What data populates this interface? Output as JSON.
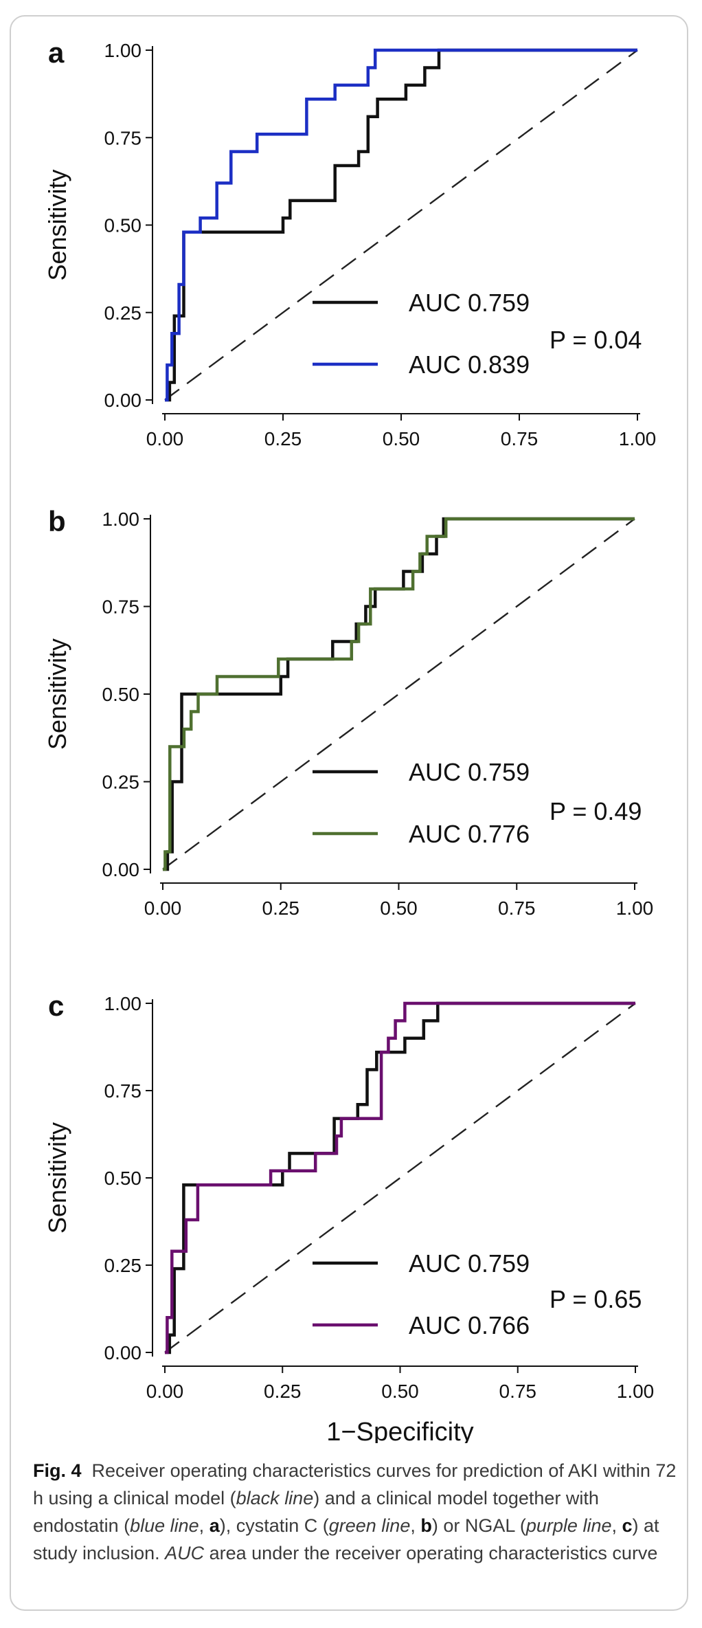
{
  "chart_data": [
    {
      "type": "line",
      "panel_label": "a",
      "ylabel": "Sensitivity",
      "xlabel": "",
      "xlim": [
        0,
        1
      ],
      "ylim": [
        0,
        1
      ],
      "xticks": [
        "0.00",
        "0.25",
        "0.50",
        "0.75",
        "1.00"
      ],
      "yticks": [
        "0.00",
        "0.25",
        "0.50",
        "0.75",
        "1.00"
      ],
      "reference_line": "diagonal-dashed",
      "legend_position": "bottom-right",
      "p_value_label": "P = 0.04",
      "series": [
        {
          "name": "AUC 0.759",
          "color": "#111111",
          "x": [
            0,
            0.01,
            0.01,
            0.02,
            0.02,
            0.04,
            0.04,
            0.25,
            0.25,
            0.265,
            0.265,
            0.36,
            0.36,
            0.41,
            0.41,
            0.43,
            0.43,
            0.45,
            0.45,
            0.51,
            0.51,
            0.55,
            0.55,
            0.58,
            0.58,
            0.595,
            0.595,
            1.0
          ],
          "y": [
            0,
            0,
            0.05,
            0.05,
            0.24,
            0.24,
            0.48,
            0.48,
            0.52,
            0.52,
            0.57,
            0.57,
            0.67,
            0.67,
            0.71,
            0.71,
            0.81,
            0.81,
            0.86,
            0.86,
            0.9,
            0.9,
            0.95,
            0.95,
            1.0,
            1.0,
            1.0,
            1.0
          ]
        },
        {
          "name": "AUC 0.839",
          "color": "#1c2fc4",
          "x": [
            0,
            0.005,
            0.005,
            0.015,
            0.015,
            0.03,
            0.03,
            0.04,
            0.04,
            0.075,
            0.075,
            0.11,
            0.11,
            0.14,
            0.14,
            0.195,
            0.195,
            0.3,
            0.3,
            0.36,
            0.36,
            0.43,
            0.43,
            0.445,
            0.445,
            1.0
          ],
          "y": [
            0,
            0,
            0.1,
            0.1,
            0.19,
            0.19,
            0.33,
            0.33,
            0.48,
            0.48,
            0.52,
            0.52,
            0.62,
            0.62,
            0.71,
            0.71,
            0.76,
            0.76,
            0.86,
            0.86,
            0.9,
            0.9,
            0.95,
            0.95,
            1.0,
            1.0
          ]
        }
      ]
    },
    {
      "type": "line",
      "panel_label": "b",
      "ylabel": "Sensitivity",
      "xlabel": "",
      "xlim": [
        0,
        1
      ],
      "ylim": [
        0,
        1
      ],
      "xticks": [
        "0.00",
        "0.25",
        "0.50",
        "0.75",
        "1.00"
      ],
      "yticks": [
        "0.00",
        "0.25",
        "0.50",
        "0.75",
        "1.00"
      ],
      "reference_line": "diagonal-dashed",
      "legend_position": "bottom-right",
      "p_value_label": "P = 0.49",
      "series": [
        {
          "name": "AUC 0.759",
          "color": "#111111",
          "x": [
            0,
            0.01,
            0.01,
            0.02,
            0.02,
            0.04,
            0.04,
            0.25,
            0.25,
            0.265,
            0.265,
            0.36,
            0.36,
            0.41,
            0.41,
            0.43,
            0.43,
            0.45,
            0.45,
            0.51,
            0.51,
            0.55,
            0.55,
            0.58,
            0.58,
            0.595,
            0.595,
            1.0
          ],
          "y": [
            0,
            0,
            0.05,
            0.05,
            0.25,
            0.25,
            0.5,
            0.5,
            0.55,
            0.55,
            0.6,
            0.6,
            0.65,
            0.65,
            0.7,
            0.7,
            0.75,
            0.75,
            0.8,
            0.8,
            0.85,
            0.85,
            0.9,
            0.9,
            0.95,
            0.95,
            1.0,
            1.0
          ]
        },
        {
          "name": "AUC 0.776",
          "color": "#4f7030",
          "x": [
            0,
            0.005,
            0.005,
            0.015,
            0.015,
            0.045,
            0.045,
            0.06,
            0.06,
            0.075,
            0.075,
            0.115,
            0.115,
            0.245,
            0.245,
            0.4,
            0.4,
            0.415,
            0.415,
            0.44,
            0.44,
            0.53,
            0.53,
            0.545,
            0.545,
            0.56,
            0.56,
            0.6,
            0.6,
            1.0
          ],
          "y": [
            0,
            0,
            0.05,
            0.05,
            0.35,
            0.35,
            0.4,
            0.4,
            0.45,
            0.45,
            0.5,
            0.5,
            0.55,
            0.55,
            0.6,
            0.6,
            0.65,
            0.65,
            0.7,
            0.7,
            0.8,
            0.8,
            0.85,
            0.85,
            0.9,
            0.9,
            0.95,
            0.95,
            1.0,
            1.0
          ]
        }
      ]
    },
    {
      "type": "line",
      "panel_label": "c",
      "ylabel": "Sensitivity",
      "xlabel": "1−Specificity",
      "xlim": [
        0,
        1
      ],
      "ylim": [
        0,
        1
      ],
      "xticks": [
        "0.00",
        "0.25",
        "0.50",
        "0.75",
        "1.00"
      ],
      "yticks": [
        "0.00",
        "0.25",
        "0.50",
        "0.75",
        "1.00"
      ],
      "reference_line": "diagonal-dashed",
      "legend_position": "bottom-right",
      "p_value_label": "P = 0.65",
      "series": [
        {
          "name": "AUC 0.759",
          "color": "#111111",
          "x": [
            0,
            0.01,
            0.01,
            0.02,
            0.02,
            0.04,
            0.04,
            0.25,
            0.25,
            0.265,
            0.265,
            0.36,
            0.36,
            0.41,
            0.41,
            0.43,
            0.43,
            0.45,
            0.45,
            0.51,
            0.51,
            0.55,
            0.55,
            0.58,
            0.58,
            0.595,
            0.595,
            1.0
          ],
          "y": [
            0,
            0,
            0.05,
            0.05,
            0.24,
            0.24,
            0.48,
            0.48,
            0.52,
            0.52,
            0.57,
            0.57,
            0.67,
            0.67,
            0.71,
            0.71,
            0.81,
            0.81,
            0.86,
            0.86,
            0.9,
            0.9,
            0.95,
            0.95,
            1.0,
            1.0,
            1.0,
            1.0
          ]
        },
        {
          "name": "AUC 0.766",
          "color": "#6a0f6e",
          "x": [
            0,
            0.005,
            0.005,
            0.015,
            0.015,
            0.045,
            0.045,
            0.07,
            0.07,
            0.225,
            0.225,
            0.32,
            0.32,
            0.365,
            0.365,
            0.375,
            0.375,
            0.46,
            0.46,
            0.475,
            0.475,
            0.49,
            0.49,
            0.51,
            0.51,
            1.0
          ],
          "y": [
            0,
            0,
            0.1,
            0.1,
            0.29,
            0.29,
            0.38,
            0.38,
            0.48,
            0.48,
            0.52,
            0.52,
            0.57,
            0.57,
            0.62,
            0.62,
            0.67,
            0.67,
            0.86,
            0.86,
            0.9,
            0.9,
            0.95,
            0.95,
            1.0,
            1.0
          ]
        }
      ]
    }
  ],
  "caption": {
    "fig_label": "Fig. 4",
    "text_1": "Receiver operating characteristics curves for prediction of AKI within 72 h using a clinical model (",
    "black_line": "black line",
    "text_2": ") and a clinical model together with endostatin (",
    "blue_line": "blue line",
    "text_3": ", ",
    "label_a": "a",
    "text_4": "), cystatin C (",
    "green_line": "green line",
    "text_5": ", ",
    "label_b": "b",
    "text_6": ") or NGAL (",
    "purple_line": "purple line",
    "text_7": ", ",
    "label_c": "c",
    "text_8": ") at study inclusion. ",
    "auc_abbr": "AUC",
    "text_9": " area under the receiver operating characteristics curve"
  }
}
